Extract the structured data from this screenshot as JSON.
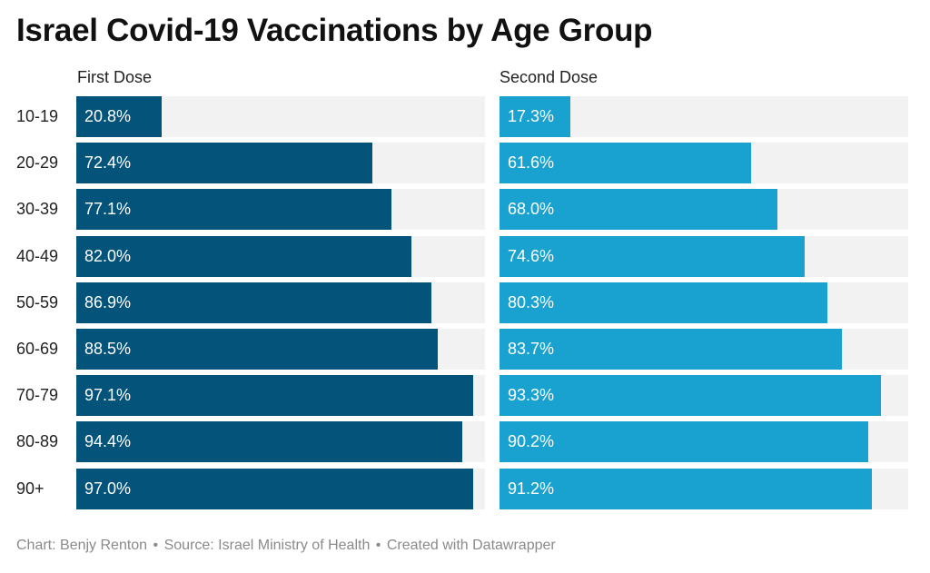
{
  "chart_data": {
    "type": "bar",
    "orientation": "horizontal",
    "title": "Israel Covid-19 Vaccinations by Age Group",
    "categories": [
      "10-19",
      "20-29",
      "30-39",
      "40-49",
      "50-59",
      "60-69",
      "70-79",
      "80-89",
      "90+"
    ],
    "series": [
      {
        "name": "First Dose",
        "color": "#04537a",
        "values": [
          20.8,
          72.4,
          77.1,
          82.0,
          86.9,
          88.5,
          97.1,
          94.4,
          97.0
        ],
        "labels": [
          "20.8%",
          "72.4%",
          "77.1%",
          "82.0%",
          "86.9%",
          "88.5%",
          "97.1%",
          "94.4%",
          "97.0%"
        ]
      },
      {
        "name": "Second Dose",
        "color": "#19a2cf",
        "values": [
          17.3,
          61.6,
          68.0,
          74.6,
          80.3,
          83.7,
          93.3,
          90.2,
          91.2
        ],
        "labels": [
          "17.3%",
          "61.6%",
          "68.0%",
          "74.6%",
          "80.3%",
          "83.7%",
          "93.3%",
          "90.2%",
          "91.2%"
        ]
      }
    ],
    "xlim": [
      0,
      100
    ],
    "track_color": "#f2f2f2",
    "legend": "none",
    "grid": false
  },
  "footer": {
    "chart_credit": "Chart: Benjy Renton",
    "source": "Source: Israel Ministry of Health",
    "created_with": "Created with Datawrapper",
    "separator": "•"
  }
}
